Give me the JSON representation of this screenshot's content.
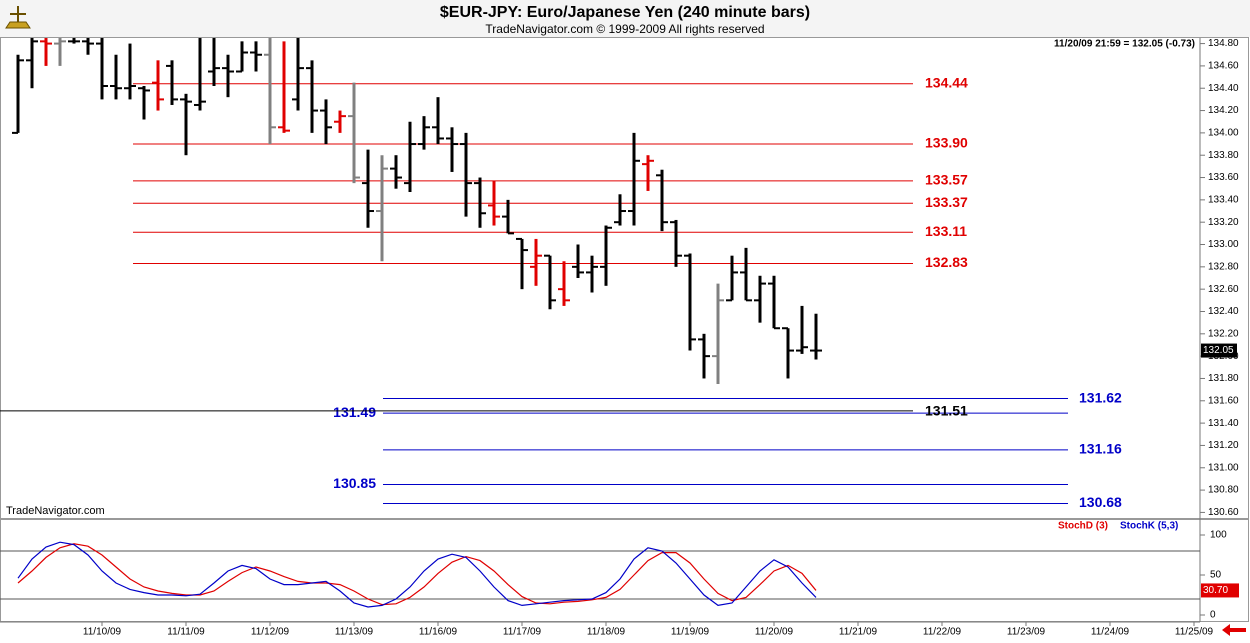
{
  "chart_data": [
    {
      "type": "ohlc",
      "title": "$EUR-JPY:  Euro/Japanese Yen  (240 minute bars)",
      "subtitle": "TradeNavigator.com © 1999-2009 All rights reserved",
      "annotation": "11/20/09 21:59 = 132.05 (-0.73)",
      "watermark": "TradeNavigator.com",
      "open": [
        134.0,
        134.65,
        134.82,
        134.8,
        134.82,
        134.82,
        134.8,
        134.42,
        134.4,
        134.4,
        134.45,
        134.6,
        134.3,
        134.25,
        134.55,
        134.58,
        134.55,
        134.72,
        134.7,
        134.05,
        134.3,
        134.58,
        134.2,
        134.1,
        134.15,
        133.55,
        133.3,
        133.68,
        133.55,
        133.9,
        134.05,
        133.95,
        133.9,
        133.55,
        133.35,
        133.25,
        133.05,
        132.8,
        132.9,
        132.6,
        132.8,
        132.75,
        132.8,
        133.2,
        133.3,
        133.72,
        133.62,
        133.2,
        132.9,
        132.15,
        132.0,
        132.5,
        132.75,
        132.5,
        132.65,
        132.25,
        132.05,
        132.05
      ],
      "high": [
        134.7,
        134.85,
        134.85,
        134.85,
        134.85,
        134.85,
        134.85,
        134.7,
        134.8,
        134.42,
        134.65,
        134.65,
        134.35,
        134.85,
        134.85,
        134.7,
        134.82,
        134.82,
        134.85,
        134.82,
        134.85,
        134.65,
        134.3,
        134.2,
        134.45,
        133.85,
        133.8,
        133.8,
        134.1,
        134.15,
        134.32,
        134.05,
        134.0,
        133.6,
        133.57,
        133.4,
        133.05,
        133.05,
        132.9,
        132.85,
        133.0,
        132.9,
        133.17,
        133.45,
        134.0,
        133.8,
        133.67,
        133.22,
        132.92,
        132.2,
        132.65,
        132.9,
        132.97,
        132.72,
        132.72,
        132.25,
        132.45,
        132.38
      ],
      "low": [
        134.0,
        134.4,
        134.6,
        134.6,
        134.8,
        134.7,
        134.3,
        134.3,
        134.3,
        134.12,
        134.2,
        134.25,
        133.8,
        134.2,
        134.42,
        134.32,
        134.55,
        134.55,
        133.9,
        134.0,
        134.2,
        134.0,
        133.9,
        134.0,
        133.55,
        133.15,
        132.85,
        133.5,
        133.47,
        133.85,
        133.9,
        133.65,
        133.25,
        133.15,
        133.17,
        133.1,
        132.6,
        132.63,
        132.42,
        132.45,
        132.7,
        132.57,
        132.63,
        133.17,
        133.17,
        133.48,
        133.12,
        132.8,
        132.05,
        131.8,
        131.75,
        132.5,
        132.5,
        132.3,
        132.25,
        131.8,
        132.02,
        131.97
      ],
      "close": [
        134.65,
        134.82,
        134.8,
        134.82,
        134.82,
        134.8,
        134.42,
        134.4,
        134.42,
        134.38,
        134.3,
        134.3,
        134.28,
        134.28,
        134.58,
        134.55,
        134.72,
        134.7,
        134.05,
        134.02,
        134.58,
        134.2,
        134.05,
        134.15,
        133.6,
        133.3,
        133.68,
        133.6,
        133.9,
        134.05,
        133.95,
        133.9,
        133.55,
        133.28,
        133.25,
        133.1,
        132.95,
        132.9,
        132.5,
        132.5,
        132.75,
        132.8,
        133.15,
        133.3,
        133.75,
        133.75,
        133.2,
        132.9,
        132.15,
        132.0,
        132.5,
        132.75,
        132.5,
        132.65,
        132.25,
        132.05,
        132.08,
        132.05
      ],
      "colors": [
        "#000000",
        "#000000",
        "#e00000",
        "#808080",
        "#000000",
        "#000000",
        "#000000",
        "#000000",
        "#000000",
        "#000000",
        "#e00000",
        "#000000",
        "#000000",
        "#000000",
        "#000000",
        "#000000",
        "#000000",
        "#000000",
        "#808080",
        "#e00000",
        "#000000",
        "#000000",
        "#000000",
        "#e00000",
        "#808080",
        "#000000",
        "#808080",
        "#000000",
        "#000000",
        "#000000",
        "#000000",
        "#000000",
        "#000000",
        "#000000",
        "#e00000",
        "#000000",
        "#000000",
        "#e00000",
        "#000000",
        "#e00000",
        "#000000",
        "#000000",
        "#000000",
        "#000000",
        "#000000",
        "#e00000",
        "#000000",
        "#000000",
        "#000000",
        "#000000",
        "#808080",
        "#000000",
        "#000000",
        "#000000",
        "#000000",
        "#000000",
        "#000000",
        "#000000"
      ],
      "ylim": [
        130.55,
        134.85
      ],
      "yticks": [
        {
          "value": 130.6,
          "label": "130.60"
        },
        {
          "value": 130.8,
          "label": "130.80"
        },
        {
          "value": 131.0,
          "label": "131.00"
        },
        {
          "value": 131.2,
          "label": "131.20"
        },
        {
          "value": 131.4,
          "label": "131.40"
        },
        {
          "value": 131.6,
          "label": "131.60"
        },
        {
          "value": 131.8,
          "label": "131.80"
        },
        {
          "value": 132.0,
          "label": "132.00"
        },
        {
          "value": 132.2,
          "label": "132.20"
        },
        {
          "value": 132.4,
          "label": "132.40"
        },
        {
          "value": 132.6,
          "label": "132.60"
        },
        {
          "value": 132.8,
          "label": "132.80"
        },
        {
          "value": 133.0,
          "label": "133.00"
        },
        {
          "value": 133.2,
          "label": "133.20"
        },
        {
          "value": 133.4,
          "label": "133.40"
        },
        {
          "value": 133.6,
          "label": "133.60"
        },
        {
          "value": 133.8,
          "label": "133.80"
        },
        {
          "value": 134.0,
          "label": "134.00"
        },
        {
          "value": 134.2,
          "label": "134.20"
        },
        {
          "value": 134.4,
          "label": "134.40"
        },
        {
          "value": 134.6,
          "label": "134.60"
        },
        {
          "value": 134.8,
          "label": "134.80"
        }
      ],
      "last_price": 132.05,
      "resistance_levels": {
        "color": "#e00000",
        "values": [
          134.44,
          133.9,
          133.57,
          133.37,
          133.11,
          132.83
        ],
        "value_labels": [
          "134.44",
          "133.90",
          "133.57",
          "133.37",
          "133.11",
          "132.83"
        ]
      },
      "support_levels": {
        "color": "#0000c8",
        "values": [
          131.62,
          131.49,
          131.16,
          130.85,
          130.68
        ],
        "label_side": [
          "right",
          "left",
          "right",
          "left",
          "right"
        ]
      },
      "reference_level": {
        "value": 131.51,
        "color": "#000000"
      }
    },
    {
      "type": "line",
      "series": [
        {
          "name": "StochD (3)",
          "color": "#e00000",
          "values": [
            40,
            55,
            72,
            84,
            89,
            86,
            75,
            60,
            45,
            35,
            30,
            27,
            25,
            25,
            30,
            42,
            53,
            60,
            55,
            48,
            42,
            40,
            40,
            38,
            30,
            20,
            13,
            14,
            22,
            35,
            52,
            66,
            73,
            68,
            55,
            38,
            23,
            15,
            14,
            16,
            17,
            19,
            22,
            32,
            50,
            68,
            78,
            78,
            65,
            45,
            27,
            18,
            22,
            38,
            55,
            62,
            52,
            30.7
          ]
        },
        {
          "name": "StochK (5,3)",
          "color": "#0000c8",
          "values": [
            46,
            70,
            85,
            91,
            88,
            75,
            55,
            40,
            32,
            28,
            25,
            25,
            24,
            26,
            40,
            55,
            62,
            58,
            45,
            38,
            38,
            40,
            42,
            30,
            15,
            10,
            12,
            20,
            35,
            55,
            70,
            76,
            72,
            55,
            35,
            18,
            12,
            14,
            16,
            18,
            19,
            20,
            28,
            45,
            70,
            84,
            80,
            65,
            45,
            25,
            12,
            15,
            35,
            55,
            69,
            60,
            40,
            22
          ]
        }
      ],
      "ylim": [
        -6.25,
        118.75
      ],
      "yticks": [
        0,
        50,
        100
      ],
      "reference_lines": [
        20,
        80
      ],
      "last_value_label": {
        "value": 30.7,
        "label": "30.70"
      },
      "xtick_labels": [
        "11/10/09",
        "11/11/09",
        "11/12/09",
        "11/13/09",
        "11/16/09",
        "11/17/09",
        "11/18/09",
        "11/19/09",
        "11/20/09",
        "11/21/09",
        "11/22/09",
        "11/23/09",
        "11/24/09",
        "11/25/09"
      ]
    }
  ]
}
